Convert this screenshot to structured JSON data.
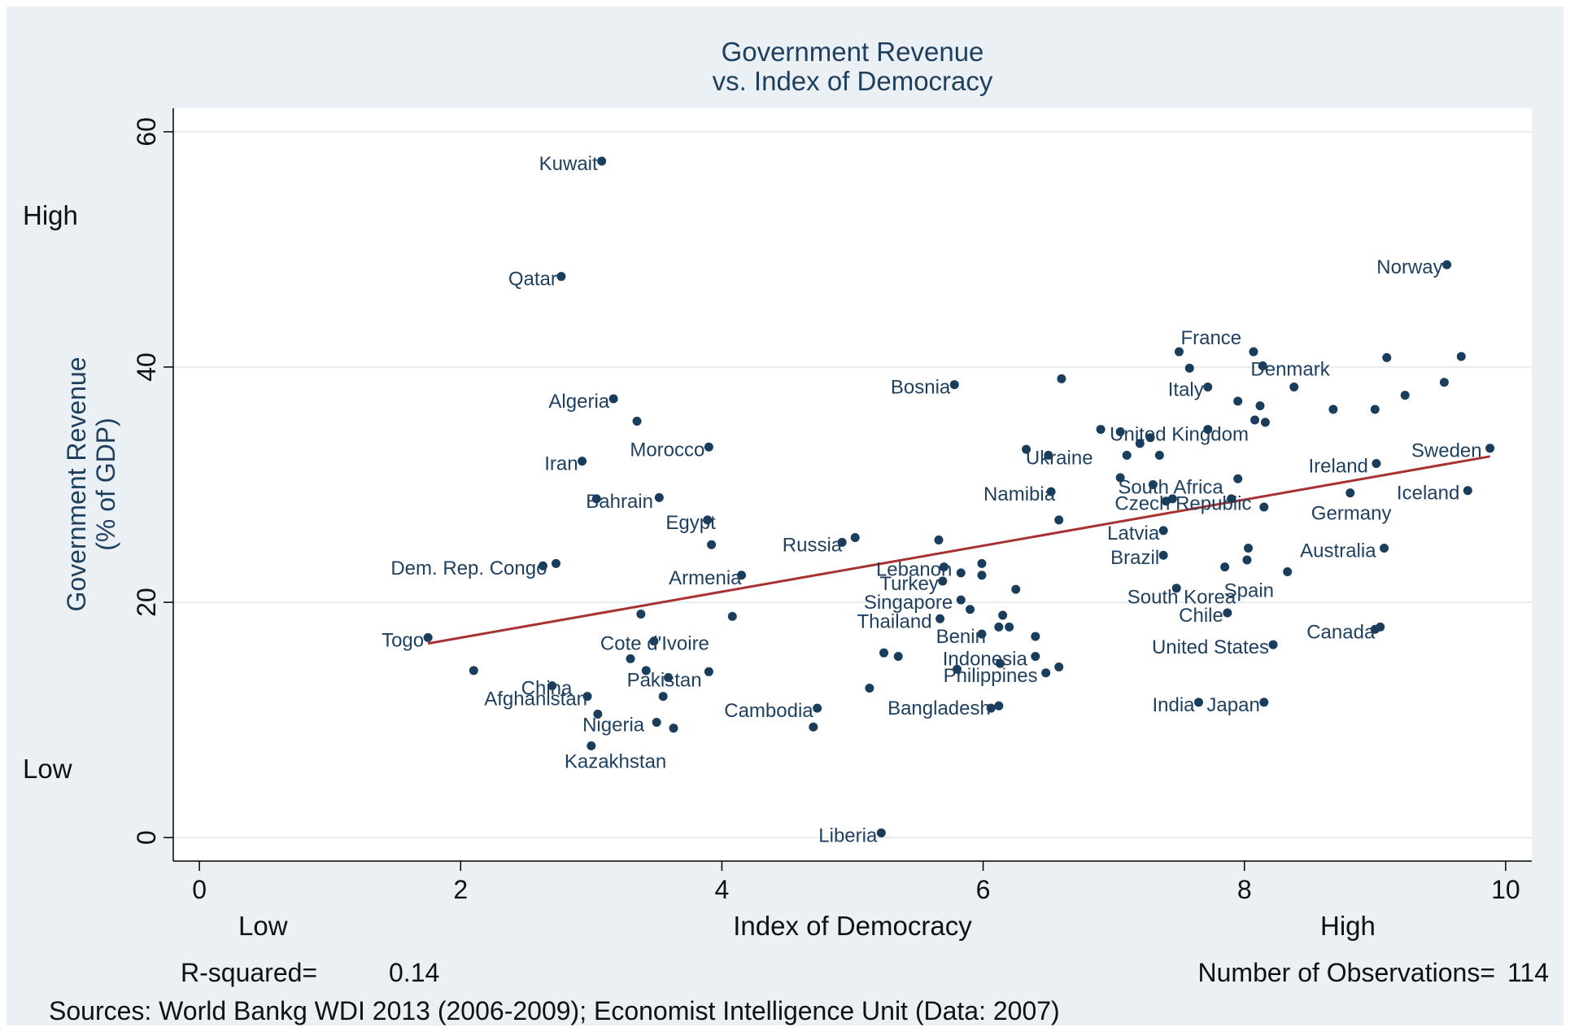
{
  "chart_data": {
    "type": "scatter",
    "title": [
      "Government Revenue",
      "vs. Index of Democracy"
    ],
    "xlabel": "Index of Democracy",
    "ylabel": [
      "Government Revenue",
      "(% of GDP)"
    ],
    "x_low_label": "Low",
    "x_high_label": "High",
    "y_low_label": "Low",
    "y_high_label": "High",
    "xlim": [
      -0.2,
      10.2
    ],
    "ylim": [
      -2,
      62
    ],
    "x_ticks": [
      "0",
      "2",
      "4",
      "6",
      "8",
      "10"
    ],
    "y_ticks": [
      "0",
      "20",
      "40",
      "60"
    ],
    "grid": true,
    "fit_line": {
      "x": [
        1.75,
        9.88
      ],
      "y": [
        16.5,
        32.4
      ]
    },
    "r_squared_label": "R-squared=",
    "r_squared": "0.14",
    "n_label": "Number of Observations=",
    "n": "114",
    "sources": "Sources: World Bankg WDI 2013 (2006-2009); Economist Intelligence Unit (Data: 2007)",
    "colors": {
      "marker": "#1a3d5c",
      "fit_line": "#a83232",
      "background": "#eaf0f3",
      "plot_area": "#ffffff",
      "text": "#1f3f5f"
    },
    "points": [
      {
        "x": 3.08,
        "y": 57.5,
        "label": "Kuwait",
        "anchor": "end"
      },
      {
        "x": 2.77,
        "y": 47.7,
        "label": "Qatar",
        "anchor": "end"
      },
      {
        "x": 3.17,
        "y": 37.3,
        "label": "Algeria",
        "anchor": "end"
      },
      {
        "x": 3.35,
        "y": 35.4,
        "label": ""
      },
      {
        "x": 3.9,
        "y": 33.2,
        "label": "Morocco",
        "anchor": "end"
      },
      {
        "x": 2.93,
        "y": 32.0,
        "label": "Iran",
        "anchor": "end"
      },
      {
        "x": 3.04,
        "y": 28.8,
        "label": "Bahrain",
        "anchor": "start",
        "dx": -20
      },
      {
        "x": 3.52,
        "y": 28.9,
        "label": ""
      },
      {
        "x": 3.89,
        "y": 27.0,
        "label": "Egypt",
        "anchor": "end",
        "dx": 15
      },
      {
        "x": 3.92,
        "y": 24.9,
        "label": ""
      },
      {
        "x": 2.63,
        "y": 23.1,
        "label": "Dem. Rep. Congo",
        "anchor": "end",
        "dx": 10
      },
      {
        "x": 2.73,
        "y": 23.3,
        "label": ""
      },
      {
        "x": 4.15,
        "y": 22.3,
        "label": "Armenia",
        "anchor": "end",
        "dx": 5
      },
      {
        "x": 1.75,
        "y": 17.0,
        "label": "Togo",
        "anchor": "end"
      },
      {
        "x": 3.38,
        "y": 19.0,
        "label": ""
      },
      {
        "x": 4.08,
        "y": 18.8,
        "label": ""
      },
      {
        "x": 3.48,
        "y": 16.7,
        "label": "Cote d'Ivoire",
        "anchor": "start",
        "dx": -73
      },
      {
        "x": 2.1,
        "y": 14.2,
        "label": ""
      },
      {
        "x": 3.3,
        "y": 15.2,
        "label": ""
      },
      {
        "x": 3.42,
        "y": 14.2,
        "label": ""
      },
      {
        "x": 3.59,
        "y": 13.6,
        "label": "Pakistan",
        "anchor": "start",
        "dx": -58
      },
      {
        "x": 3.9,
        "y": 14.1,
        "label": ""
      },
      {
        "x": 2.7,
        "y": 12.9,
        "label": "China",
        "anchor": "start",
        "dx": -45
      },
      {
        "x": 2.97,
        "y": 12.0,
        "label": "Afghanistan",
        "anchor": "end",
        "dx": 5
      },
      {
        "x": 3.55,
        "y": 12.0,
        "label": ""
      },
      {
        "x": 3.05,
        "y": 10.5,
        "label": ""
      },
      {
        "x": 3.5,
        "y": 9.8,
        "label": "Nigeria",
        "anchor": "end",
        "dx": -10
      },
      {
        "x": 3.63,
        "y": 9.3,
        "label": ""
      },
      {
        "x": 3.0,
        "y": 7.8,
        "label": "Kazakhstan",
        "anchor": "start",
        "dx": -40,
        "dy": 16
      },
      {
        "x": 4.73,
        "y": 11.0,
        "label": "Cambodia",
        "anchor": "end"
      },
      {
        "x": 4.7,
        "y": 9.4,
        "label": ""
      },
      {
        "x": 5.02,
        "y": 25.5,
        "label": ""
      },
      {
        "x": 4.92,
        "y": 25.1,
        "label": "Russia",
        "anchor": "end",
        "dx": 5
      },
      {
        "x": 5.78,
        "y": 38.5,
        "label": "Bosnia",
        "anchor": "end"
      },
      {
        "x": 6.6,
        "y": 39.0,
        "label": ""
      },
      {
        "x": 5.22,
        "y": 0.4,
        "label": "Liberia",
        "anchor": "end"
      },
      {
        "x": 5.13,
        "y": 12.7,
        "label": ""
      },
      {
        "x": 5.24,
        "y": 15.7,
        "label": ""
      },
      {
        "x": 5.35,
        "y": 15.4,
        "label": ""
      },
      {
        "x": 5.66,
        "y": 25.3,
        "label": ""
      },
      {
        "x": 5.7,
        "y": 23.0,
        "label": "Lebanon",
        "anchor": "end",
        "dx": 15
      },
      {
        "x": 5.83,
        "y": 22.5,
        "label": ""
      },
      {
        "x": 5.99,
        "y": 23.3,
        "label": ""
      },
      {
        "x": 5.99,
        "y": 22.3,
        "label": ""
      },
      {
        "x": 5.69,
        "y": 21.8,
        "label": "Turkey",
        "anchor": "end"
      },
      {
        "x": 6.25,
        "y": 21.1,
        "label": ""
      },
      {
        "x": 5.83,
        "y": 20.2,
        "label": "Singapore",
        "anchor": "end",
        "dx": -5
      },
      {
        "x": 5.9,
        "y": 19.4,
        "label": ""
      },
      {
        "x": 5.67,
        "y": 18.6,
        "label": "Thailand",
        "anchor": "end",
        "dx": -5
      },
      {
        "x": 6.15,
        "y": 18.9,
        "label": ""
      },
      {
        "x": 6.12,
        "y": 17.9,
        "label": ""
      },
      {
        "x": 6.2,
        "y": 17.9,
        "label": ""
      },
      {
        "x": 5.99,
        "y": 17.3,
        "label": "Benin",
        "anchor": "end",
        "dx": 10
      },
      {
        "x": 6.4,
        "y": 17.1,
        "label": ""
      },
      {
        "x": 6.4,
        "y": 15.4,
        "label": "Indonesia",
        "anchor": "end",
        "dx": -5
      },
      {
        "x": 6.13,
        "y": 14.8,
        "label": ""
      },
      {
        "x": 5.8,
        "y": 14.3,
        "label": ""
      },
      {
        "x": 6.48,
        "y": 14.0,
        "label": "Philippines",
        "anchor": "end",
        "dx": -5
      },
      {
        "x": 6.58,
        "y": 14.5,
        "label": ""
      },
      {
        "x": 6.12,
        "y": 11.2,
        "label": "Bangladesh",
        "anchor": "end",
        "dx": -5
      },
      {
        "x": 6.06,
        "y": 11.0,
        "label": ""
      },
      {
        "x": 6.33,
        "y": 33.0,
        "label": ""
      },
      {
        "x": 6.5,
        "y": 32.5,
        "label": "Ukraine",
        "anchor": "start",
        "dx": -35
      },
      {
        "x": 6.9,
        "y": 34.7,
        "label": ""
      },
      {
        "x": 7.05,
        "y": 34.5,
        "label": "United Kingdom",
        "anchor": "start",
        "dx": -20
      },
      {
        "x": 7.2,
        "y": 33.5,
        "label": ""
      },
      {
        "x": 7.28,
        "y": 34.0,
        "label": ""
      },
      {
        "x": 7.1,
        "y": 32.5,
        "label": ""
      },
      {
        "x": 7.35,
        "y": 32.5,
        "label": ""
      },
      {
        "x": 6.52,
        "y": 29.4,
        "label": "Namibia",
        "anchor": "end",
        "dx": 10
      },
      {
        "x": 6.58,
        "y": 27.0,
        "label": ""
      },
      {
        "x": 7.05,
        "y": 30.6,
        "label": ""
      },
      {
        "x": 7.3,
        "y": 30.0,
        "label": "South Africa",
        "anchor": "start",
        "dx": -50
      },
      {
        "x": 7.45,
        "y": 28.8,
        "label": ""
      },
      {
        "x": 7.4,
        "y": 28.6,
        "label": "Czech Republic",
        "anchor": "start",
        "dx": -70
      },
      {
        "x": 7.9,
        "y": 28.8,
        "label": ""
      },
      {
        "x": 7.95,
        "y": 30.5,
        "label": ""
      },
      {
        "x": 8.15,
        "y": 28.1,
        "label": ""
      },
      {
        "x": 7.38,
        "y": 26.1,
        "label": "Latvia",
        "anchor": "end"
      },
      {
        "x": 7.38,
        "y": 24.0,
        "label": "Brazil",
        "anchor": "end"
      },
      {
        "x": 7.48,
        "y": 21.2,
        "label": "South Korea",
        "anchor": "end",
        "dx": 78,
        "dy": 8
      },
      {
        "x": 7.85,
        "y": 23.0,
        "label": "Spain",
        "anchor": "start",
        "dx": -8,
        "dy": 26
      },
      {
        "x": 8.03,
        "y": 24.6,
        "label": ""
      },
      {
        "x": 8.02,
        "y": 23.6,
        "label": ""
      },
      {
        "x": 8.33,
        "y": 22.6,
        "label": ""
      },
      {
        "x": 7.87,
        "y": 19.1,
        "label": "Chile",
        "anchor": "end"
      },
      {
        "x": 8.22,
        "y": 16.4,
        "label": "United States",
        "anchor": "end"
      },
      {
        "x": 7.65,
        "y": 11.5,
        "label": "India",
        "anchor": "end"
      },
      {
        "x": 8.15,
        "y": 11.5,
        "label": "Japan",
        "anchor": "end"
      },
      {
        "x": 7.5,
        "y": 41.3,
        "label": "France",
        "anchor": "start",
        "dx": -5,
        "dy": -20
      },
      {
        "x": 7.58,
        "y": 39.9,
        "label": ""
      },
      {
        "x": 8.07,
        "y": 41.3,
        "label": ""
      },
      {
        "x": 8.14,
        "y": 40.1,
        "label": ""
      },
      {
        "x": 7.72,
        "y": 38.3,
        "label": "Italy",
        "anchor": "end"
      },
      {
        "x": 7.95,
        "y": 37.1,
        "label": ""
      },
      {
        "x": 8.12,
        "y": 36.7,
        "label": ""
      },
      {
        "x": 8.38,
        "y": 38.3,
        "label": ""
      },
      {
        "x": 7.72,
        "y": 34.7,
        "label": ""
      },
      {
        "x": 8.08,
        "y": 35.5,
        "label": ""
      },
      {
        "x": 8.16,
        "y": 35.3,
        "label": ""
      },
      {
        "x": 8.68,
        "y": 36.4,
        "label": ""
      },
      {
        "x": 9.0,
        "y": 36.4,
        "label": ""
      },
      {
        "x": 9.09,
        "y": 40.8,
        "label": "Denmark",
        "anchor": "end",
        "dx": -65,
        "dy": 11
      },
      {
        "x": 9.66,
        "y": 40.9,
        "label": ""
      },
      {
        "x": 9.23,
        "y": 37.6,
        "label": ""
      },
      {
        "x": 9.53,
        "y": 38.7,
        "label": ""
      },
      {
        "x": 9.55,
        "y": 48.7,
        "label": "Norway",
        "anchor": "end"
      },
      {
        "x": 9.88,
        "y": 33.1,
        "label": "Sweden",
        "anchor": "end",
        "dx": -5
      },
      {
        "x": 9.01,
        "y": 31.8,
        "label": "Ireland",
        "anchor": "end",
        "dx": -5
      },
      {
        "x": 8.81,
        "y": 29.3,
        "label": "Germany",
        "anchor": "start",
        "dx": -55,
        "dy": 22
      },
      {
        "x": 9.71,
        "y": 29.5,
        "label": "Iceland",
        "anchor": "end",
        "dx": -5
      },
      {
        "x": 9.07,
        "y": 24.6,
        "label": "Australia",
        "anchor": "end",
        "dx": -5
      },
      {
        "x": 9.04,
        "y": 17.9,
        "label": ""
      },
      {
        "x": 9.0,
        "y": 17.7,
        "label": "Canada",
        "anchor": "end",
        "dx": 5
      }
    ]
  }
}
